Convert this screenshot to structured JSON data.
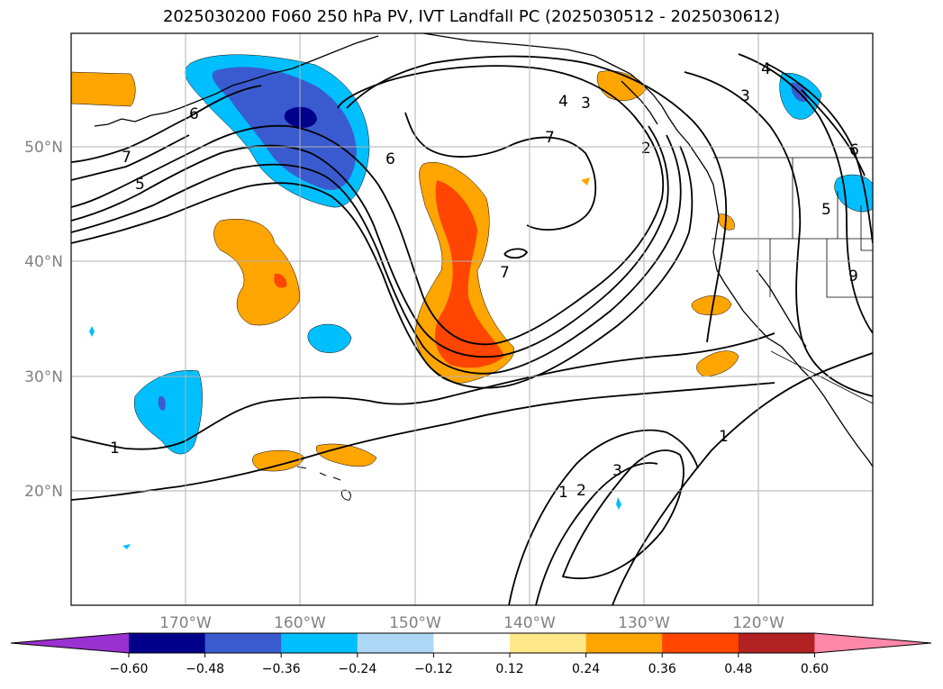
{
  "title": "2025030200 F060 250 hPa PV, IVT Landfall PC (2025030512 - 2025030612)",
  "map": {
    "lon_ticks": [
      "170°W",
      "160°W",
      "150°W",
      "140°W",
      "130°W",
      "120°W"
    ],
    "lat_ticks": [
      "50°N",
      "40°N",
      "30°N",
      "20°N"
    ]
  },
  "chart_data": {
    "type": "heatmap",
    "title": "2025030200 F060 250 hPa PV, IVT Landfall PC (2025030512 - 2025030612)",
    "xlim": [
      -180,
      -110
    ],
    "ylim": [
      10,
      60
    ],
    "grid": true,
    "colorbar": {
      "levels": [
        -0.6,
        -0.48,
        -0.36,
        -0.24,
        -0.12,
        0.12,
        0.24,
        0.36,
        0.48,
        0.6
      ],
      "tick_labels": [
        "−0.60",
        "−0.48",
        "−0.36",
        "−0.24",
        "−0.12",
        "0.12",
        "0.24",
        "0.36",
        "0.48",
        "0.60"
      ],
      "colors": [
        "#9b30d0",
        "#00008b",
        "#3a5bd0",
        "#00bfff",
        "#add8f5",
        "#ffffff",
        "#ffe88a",
        "#ffa500",
        "#ff4500",
        "#b22222",
        "#ff88aa"
      ]
    },
    "contour_labels": [
      "7",
      "5",
      "6",
      "6",
      "4",
      "3",
      "7",
      "2",
      "7",
      "4",
      "3",
      "6",
      "5",
      "9",
      "1",
      "1",
      "2",
      "3",
      "1"
    ]
  }
}
